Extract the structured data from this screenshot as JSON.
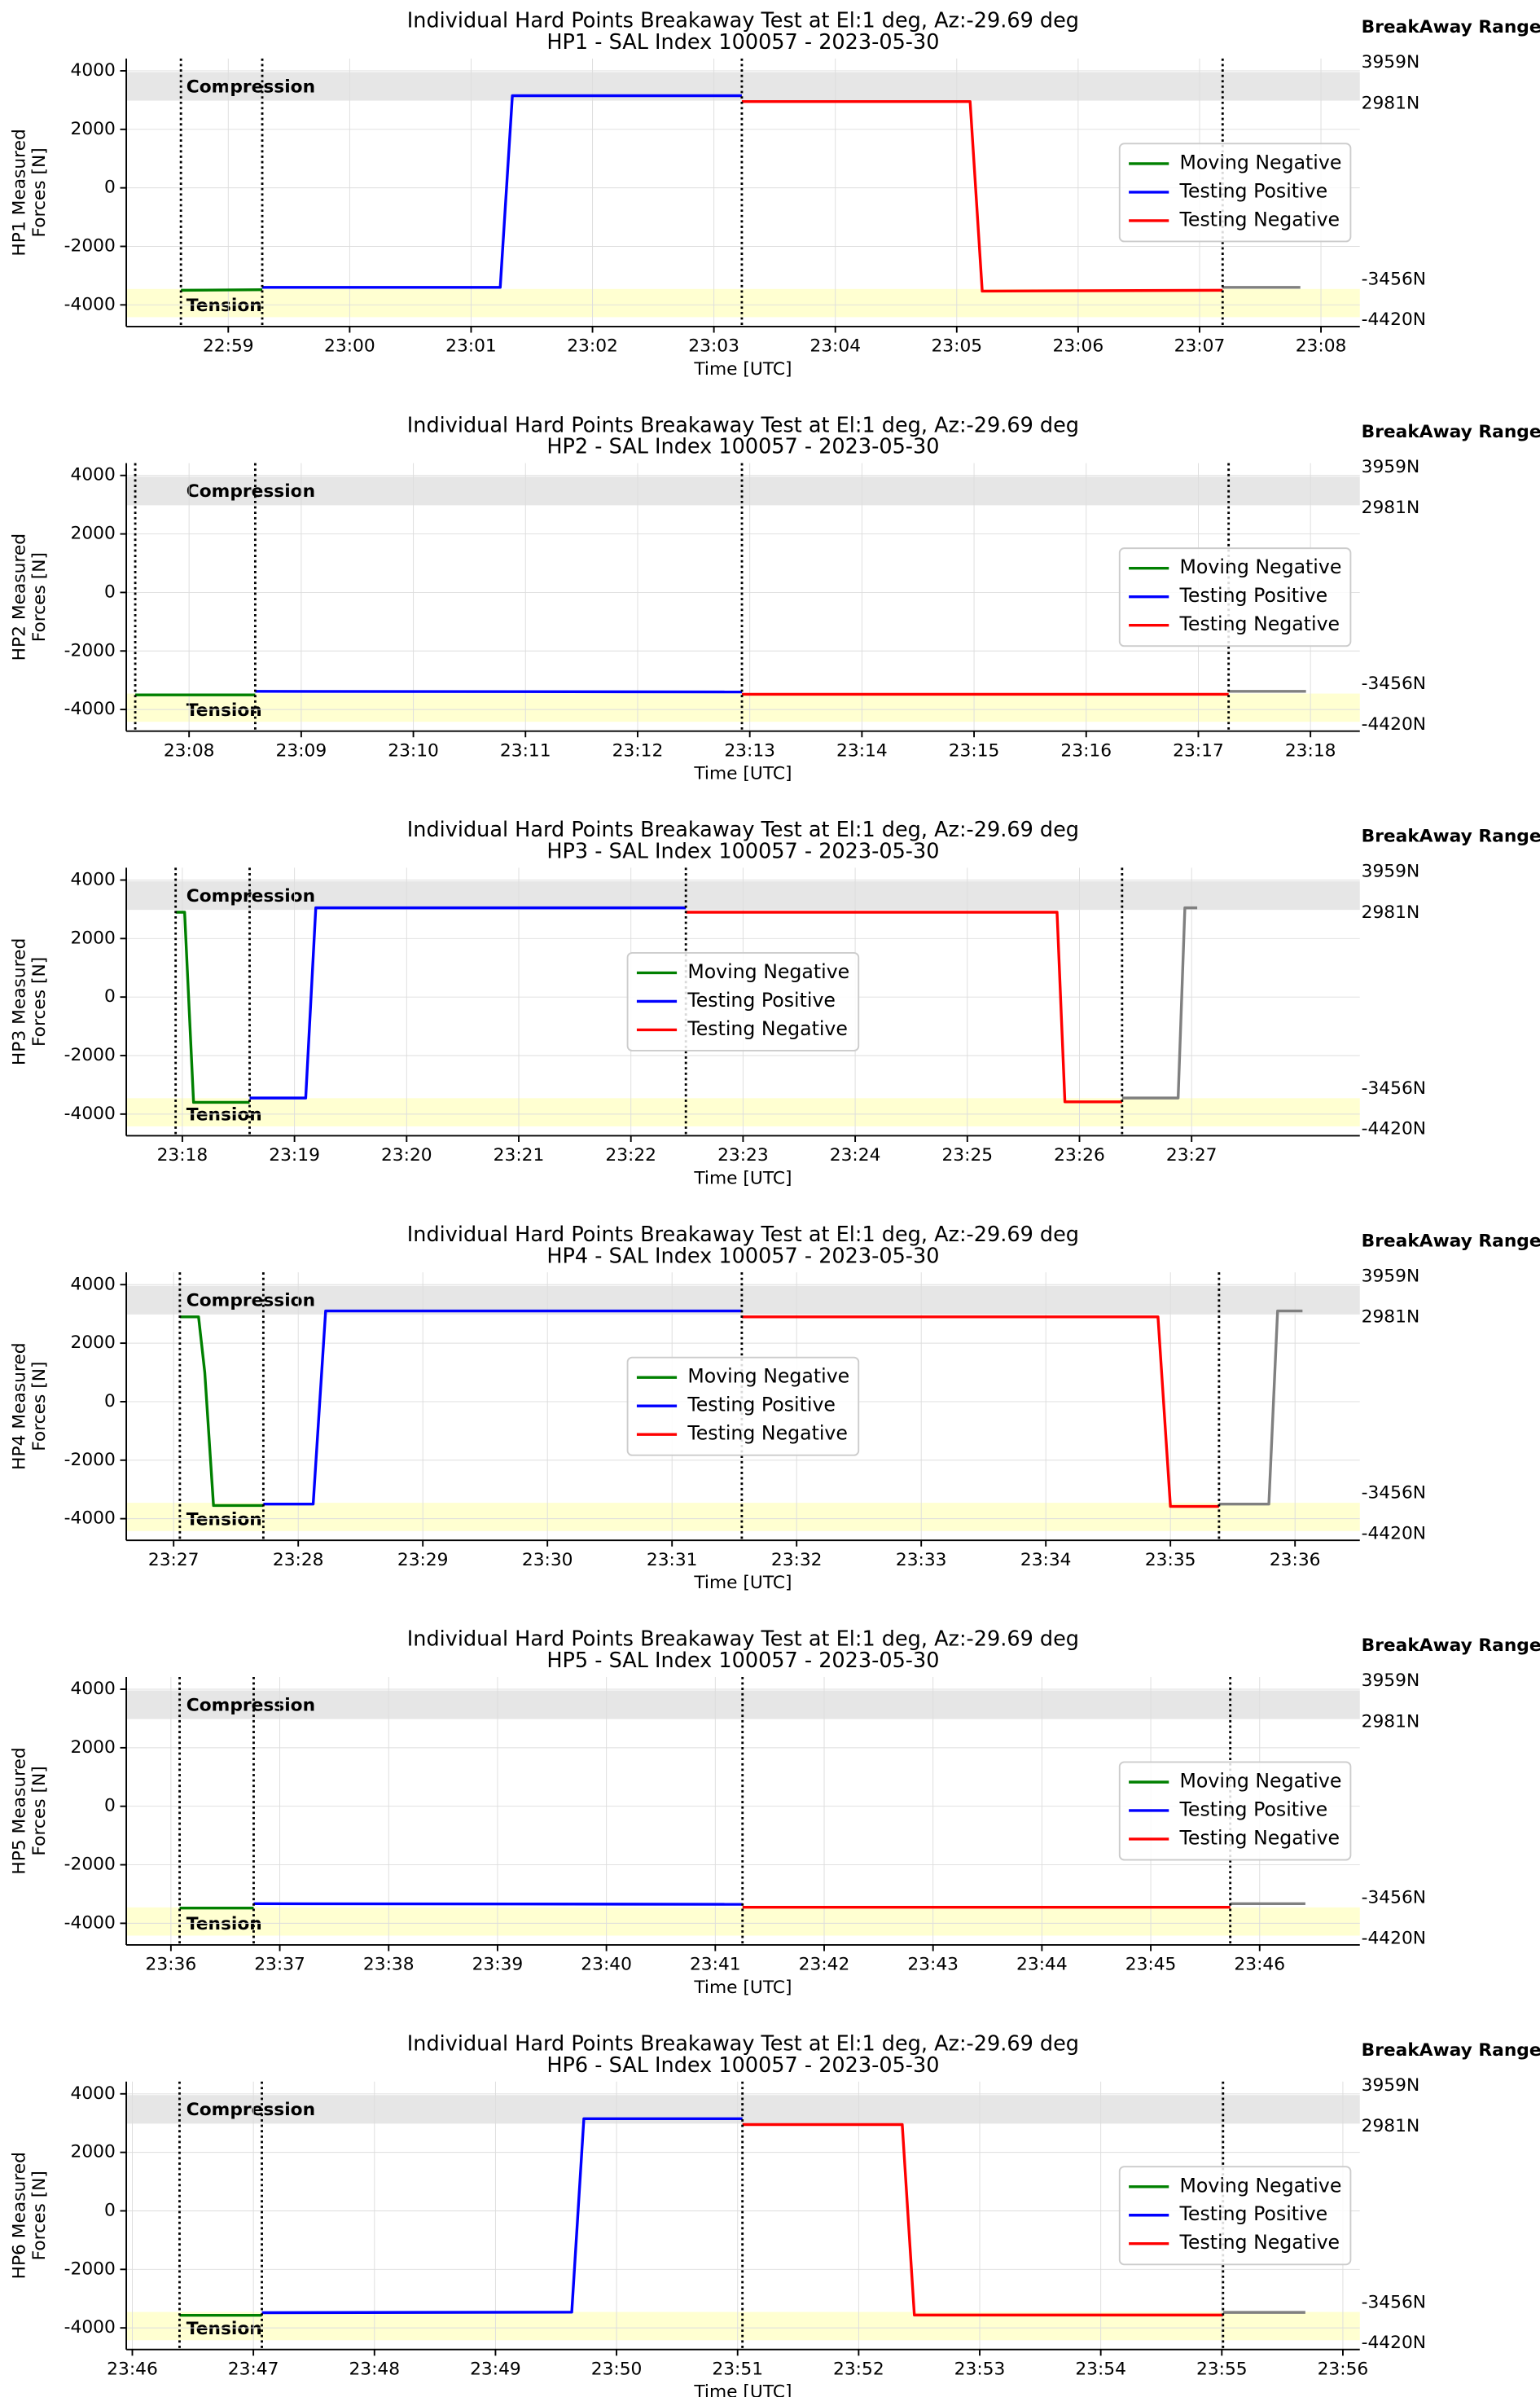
{
  "chart_data": [
    {
      "type": "line",
      "title": "Individual Hard Points Breakaway Test at El:1 deg, Az:-29.69 deg",
      "subtitle": "HP1 - SAL Index 100057 - 2023-05-30",
      "ylabel": [
        "HP1 Measured",
        "Forces [N]"
      ],
      "xlabel": "Time [UTC]",
      "range_title": "BreakAway Range:",
      "xlim": [
        1378.16,
        1388.32
      ],
      "ylim": [
        -4740,
        4420
      ],
      "xticks": [
        {
          "value": 1379,
          "label": "22:59"
        },
        {
          "value": 1380,
          "label": "23:00"
        },
        {
          "value": 1381,
          "label": "23:01"
        },
        {
          "value": 1382,
          "label": "23:02"
        },
        {
          "value": 1383,
          "label": "23:03"
        },
        {
          "value": 1384,
          "label": "23:04"
        },
        {
          "value": 1385,
          "label": "23:05"
        },
        {
          "value": 1386,
          "label": "23:06"
        },
        {
          "value": 1387,
          "label": "23:07"
        },
        {
          "value": 1388,
          "label": "23:08"
        }
      ],
      "yticks": [
        -4000,
        -2000,
        0,
        2000,
        4000
      ],
      "grid": true,
      "legend": "center right",
      "bands": [
        {
          "label": "Compression",
          "range": [
            2981,
            3959
          ],
          "range_labels": [
            "2981N",
            "3959N"
          ],
          "color": "#e3e3e3"
        },
        {
          "label": "Tension",
          "range": [
            -4420,
            -3456
          ],
          "range_labels": [
            "-4420N",
            "-3456N"
          ],
          "color": "#ffffcc"
        }
      ],
      "vlines": [
        1378.61,
        1379.28,
        1383.23,
        1387.19
      ],
      "series": [
        {
          "name": "Moving Negative",
          "color": "green",
          "x": [
            1378.61,
            1379.28
          ],
          "values": [
            -3500,
            -3480
          ]
        },
        {
          "name": "Testing Positive",
          "color": "blue",
          "x": [
            1379.28,
            1381.24,
            1381.34,
            1383.23
          ],
          "values": [
            -3400,
            -3400,
            3150,
            3150
          ]
        },
        {
          "name": "Testing Negative",
          "color": "red",
          "x": [
            1383.23,
            1385.11,
            1385.21,
            1387.19
          ],
          "values": [
            2950,
            2950,
            -3530,
            -3500
          ]
        },
        {
          "color": "gray",
          "x": [
            1387.19,
            1387.83
          ],
          "values": [
            -3400,
            -3400
          ]
        }
      ]
    },
    {
      "type": "line",
      "title": "Individual Hard Points Breakaway Test at El:1 deg, Az:-29.69 deg",
      "subtitle": "HP2 - SAL Index 100057 - 2023-05-30",
      "ylabel": [
        "HP2 Measured",
        "Forces [N]"
      ],
      "xlabel": "Time [UTC]",
      "range_title": "BreakAway Range:",
      "xlim": [
        1387.44,
        1398.44
      ],
      "ylim": [
        -4740,
        4420
      ],
      "xticks": [
        {
          "value": 1388,
          "label": "23:08"
        },
        {
          "value": 1389,
          "label": "23:09"
        },
        {
          "value": 1390,
          "label": "23:10"
        },
        {
          "value": 1391,
          "label": "23:11"
        },
        {
          "value": 1392,
          "label": "23:12"
        },
        {
          "value": 1393,
          "label": "23:13"
        },
        {
          "value": 1394,
          "label": "23:14"
        },
        {
          "value": 1395,
          "label": "23:15"
        },
        {
          "value": 1396,
          "label": "23:16"
        },
        {
          "value": 1397,
          "label": "23:17"
        },
        {
          "value": 1398,
          "label": "23:18"
        }
      ],
      "yticks": [
        -4000,
        -2000,
        0,
        2000,
        4000
      ],
      "grid": true,
      "legend": "center right",
      "bands": [
        {
          "label": "Compression",
          "range": [
            2981,
            3959
          ],
          "range_labels": [
            "2981N",
            "3959N"
          ],
          "color": "#e3e3e3"
        },
        {
          "label": "Tension",
          "range": [
            -4420,
            -3456
          ],
          "range_labels": [
            "-4420N",
            "-3456N"
          ],
          "color": "#ffffcc"
        }
      ],
      "vlines": [
        1387.52,
        1388.59,
        1392.93,
        1397.27
      ],
      "series": [
        {
          "name": "Moving Negative",
          "color": "green",
          "x": [
            1387.52,
            1388.59
          ],
          "values": [
            -3500,
            -3500
          ]
        },
        {
          "name": "Testing Positive",
          "color": "blue",
          "x": [
            1388.59,
            1392.93
          ],
          "values": [
            -3380,
            -3400
          ]
        },
        {
          "name": "Testing Negative",
          "color": "red",
          "x": [
            1392.93,
            1397.27
          ],
          "values": [
            -3480,
            -3480
          ]
        },
        {
          "color": "gray",
          "x": [
            1397.27,
            1397.96
          ],
          "values": [
            -3380,
            -3380
          ]
        }
      ]
    },
    {
      "type": "line",
      "title": "Individual Hard Points Breakaway Test at El:1 deg, Az:-29.69 deg",
      "subtitle": "HP3 - SAL Index 100057 - 2023-05-30",
      "ylabel": [
        "HP3 Measured",
        "Forces [N]"
      ],
      "xlabel": "Time [UTC]",
      "range_title": "BreakAway Range:",
      "xlim": [
        1397.5,
        1408.5
      ],
      "ylim": [
        -4740,
        4420
      ],
      "xticks": [
        {
          "value": 1398,
          "label": "23:18"
        },
        {
          "value": 1399,
          "label": "23:19"
        },
        {
          "value": 1400,
          "label": "23:20"
        },
        {
          "value": 1401,
          "label": "23:21"
        },
        {
          "value": 1402,
          "label": "23:22"
        },
        {
          "value": 1403,
          "label": "23:23"
        },
        {
          "value": 1404,
          "label": "23:24"
        },
        {
          "value": 1405,
          "label": "23:25"
        },
        {
          "value": 1406,
          "label": "23:26"
        },
        {
          "value": 1407,
          "label": "23:27"
        }
      ],
      "yticks": [
        -4000,
        -2000,
        0,
        2000,
        4000
      ],
      "grid": true,
      "legend": "center",
      "bands": [
        {
          "label": "Compression",
          "range": [
            2981,
            3959
          ],
          "range_labels": [
            "2981N",
            "3959N"
          ],
          "color": "#e3e3e3"
        },
        {
          "label": "Tension",
          "range": [
            -4420,
            -3456
          ],
          "range_labels": [
            "-4420N",
            "-3456N"
          ],
          "color": "#ffffcc"
        }
      ],
      "vlines": [
        1397.94,
        1398.6,
        1402.49,
        1406.38
      ],
      "series": [
        {
          "name": "Moving Negative",
          "color": "green",
          "x": [
            1397.94,
            1398.02,
            1398.1,
            1398.6
          ],
          "values": [
            2900,
            2900,
            -3600,
            -3600
          ]
        },
        {
          "name": "Testing Positive",
          "color": "blue",
          "x": [
            1398.6,
            1399.1,
            1399.19,
            1402.49
          ],
          "values": [
            -3450,
            -3450,
            3050,
            3050
          ]
        },
        {
          "name": "Testing Negative",
          "color": "red",
          "x": [
            1402.49,
            1405.8,
            1405.87,
            1406.38
          ],
          "values": [
            2900,
            2900,
            -3580,
            -3580
          ]
        },
        {
          "color": "gray",
          "x": [
            1406.38,
            1406.88,
            1406.94,
            1407.05
          ],
          "values": [
            -3450,
            -3450,
            3050,
            3050
          ]
        }
      ]
    },
    {
      "type": "line",
      "title": "Individual Hard Points Breakaway Test at El:1 deg, Az:-29.69 deg",
      "subtitle": "HP4 - SAL Index 100057 - 2023-05-30",
      "ylabel": [
        "HP4 Measured",
        "Forces [N]"
      ],
      "xlabel": "Time [UTC]",
      "range_title": "BreakAway Range:",
      "xlim": [
        1406.62,
        1416.52
      ],
      "ylim": [
        -4740,
        4420
      ],
      "xticks": [
        {
          "value": 1407,
          "label": "23:27"
        },
        {
          "value": 1408,
          "label": "23:28"
        },
        {
          "value": 1409,
          "label": "23:29"
        },
        {
          "value": 1410,
          "label": "23:30"
        },
        {
          "value": 1411,
          "label": "23:31"
        },
        {
          "value": 1412,
          "label": "23:32"
        },
        {
          "value": 1413,
          "label": "23:33"
        },
        {
          "value": 1414,
          "label": "23:34"
        },
        {
          "value": 1415,
          "label": "23:35"
        },
        {
          "value": 1416,
          "label": "23:36"
        }
      ],
      "yticks": [
        -4000,
        -2000,
        0,
        2000,
        4000
      ],
      "grid": true,
      "legend": "center",
      "bands": [
        {
          "label": "Compression",
          "range": [
            2981,
            3959
          ],
          "range_labels": [
            "2981N",
            "3959N"
          ],
          "color": "#e3e3e3"
        },
        {
          "label": "Tension",
          "range": [
            -4420,
            -3456
          ],
          "range_labels": [
            "-4420N",
            "-3456N"
          ],
          "color": "#ffffcc"
        }
      ],
      "vlines": [
        1407.05,
        1407.72,
        1411.56,
        1415.39
      ],
      "series": [
        {
          "name": "Moving Negative",
          "color": "green",
          "x": [
            1407.05,
            1407.2,
            1407.25,
            1407.32,
            1407.72
          ],
          "values": [
            2900,
            2900,
            1000,
            -3550,
            -3550
          ]
        },
        {
          "name": "Testing Positive",
          "color": "blue",
          "x": [
            1407.72,
            1408.12,
            1408.22,
            1411.56
          ],
          "values": [
            -3500,
            -3500,
            3100,
            3100
          ]
        },
        {
          "name": "Testing Negative",
          "color": "red",
          "x": [
            1411.56,
            1414.9,
            1415.0,
            1415.39
          ],
          "values": [
            2900,
            2900,
            -3580,
            -3580
          ]
        },
        {
          "color": "gray",
          "x": [
            1415.39,
            1415.79,
            1415.86,
            1416.06
          ],
          "values": [
            -3500,
            -3500,
            3100,
            3100
          ]
        }
      ]
    },
    {
      "type": "line",
      "title": "Individual Hard Points Breakaway Test at El:1 deg, Az:-29.69 deg",
      "subtitle": "HP5 - SAL Index 100057 - 2023-05-30",
      "ylabel": [
        "HP5 Measured",
        "Forces [N]"
      ],
      "xlabel": "Time [UTC]",
      "range_title": "BreakAway Range:",
      "xlim": [
        1415.59,
        1426.92
      ],
      "ylim": [
        -4740,
        4420
      ],
      "xticks": [
        {
          "value": 1416,
          "label": "23:36"
        },
        {
          "value": 1417,
          "label": "23:37"
        },
        {
          "value": 1418,
          "label": "23:38"
        },
        {
          "value": 1419,
          "label": "23:39"
        },
        {
          "value": 1420,
          "label": "23:40"
        },
        {
          "value": 1421,
          "label": "23:41"
        },
        {
          "value": 1422,
          "label": "23:42"
        },
        {
          "value": 1423,
          "label": "23:43"
        },
        {
          "value": 1424,
          "label": "23:44"
        },
        {
          "value": 1425,
          "label": "23:45"
        },
        {
          "value": 1426,
          "label": "23:46"
        }
      ],
      "yticks": [
        -4000,
        -2000,
        0,
        2000,
        4000
      ],
      "grid": true,
      "legend": "center right",
      "bands": [
        {
          "label": "Compression",
          "range": [
            2981,
            3959
          ],
          "range_labels": [
            "2981N",
            "3959N"
          ],
          "color": "#e3e3e3"
        },
        {
          "label": "Tension",
          "range": [
            -4420,
            -3456
          ],
          "range_labels": [
            "-4420N",
            "-3456N"
          ],
          "color": "#ffffcc"
        }
      ],
      "vlines": [
        1416.08,
        1416.76,
        1421.25,
        1425.73
      ],
      "series": [
        {
          "name": "Moving Negative",
          "color": "green",
          "x": [
            1416.08,
            1416.76
          ],
          "values": [
            -3480,
            -3480
          ]
        },
        {
          "name": "Testing Positive",
          "color": "blue",
          "x": [
            1416.76,
            1421.25
          ],
          "values": [
            -3330,
            -3350
          ]
        },
        {
          "name": "Testing Negative",
          "color": "red",
          "x": [
            1421.25,
            1425.73
          ],
          "values": [
            -3450,
            -3450
          ]
        },
        {
          "color": "gray",
          "x": [
            1425.73,
            1426.42
          ],
          "values": [
            -3330,
            -3330
          ]
        }
      ]
    },
    {
      "type": "line",
      "title": "Individual Hard Points Breakaway Test at El:1 deg, Az:-29.69 deg",
      "subtitle": "HP6 - SAL Index 100057 - 2023-05-30",
      "ylabel": [
        "HP6 Measured",
        "Forces [N]"
      ],
      "xlabel": "Time [UTC]",
      "range_title": "BreakAway Range:",
      "xlim": [
        1425.95,
        1436.14
      ],
      "ylim": [
        -4740,
        4420
      ],
      "xticks": [
        {
          "value": 1426,
          "label": "23:46"
        },
        {
          "value": 1427,
          "label": "23:47"
        },
        {
          "value": 1428,
          "label": "23:48"
        },
        {
          "value": 1429,
          "label": "23:49"
        },
        {
          "value": 1430,
          "label": "23:50"
        },
        {
          "value": 1431,
          "label": "23:51"
        },
        {
          "value": 1432,
          "label": "23:52"
        },
        {
          "value": 1433,
          "label": "23:53"
        },
        {
          "value": 1434,
          "label": "23:54"
        },
        {
          "value": 1435,
          "label": "23:55"
        },
        {
          "value": 1436,
          "label": "23:56"
        }
      ],
      "yticks": [
        -4000,
        -2000,
        0,
        2000,
        4000
      ],
      "grid": true,
      "legend": "center right",
      "bands": [
        {
          "label": "Compression",
          "range": [
            2981,
            3959
          ],
          "range_labels": [
            "2981N",
            "3959N"
          ],
          "color": "#e3e3e3"
        },
        {
          "label": "Tension",
          "range": [
            -4420,
            -3456
          ],
          "range_labels": [
            "-4420N",
            "-3456N"
          ],
          "color": "#ffffcc"
        }
      ],
      "vlines": [
        1426.39,
        1427.07,
        1431.04,
        1435.01
      ],
      "series": [
        {
          "name": "Moving Negative",
          "color": "green",
          "x": [
            1426.39,
            1427.07
          ],
          "values": [
            -3570,
            -3570
          ]
        },
        {
          "name": "Testing Positive",
          "color": "blue",
          "x": [
            1427.07,
            1429.63,
            1429.73,
            1431.04
          ],
          "values": [
            -3480,
            -3460,
            3150,
            3150
          ]
        },
        {
          "name": "Testing Negative",
          "color": "red",
          "x": [
            1431.04,
            1432.36,
            1432.46,
            1435.01
          ],
          "values": [
            2950,
            2950,
            -3560,
            -3560
          ]
        },
        {
          "color": "gray",
          "x": [
            1435.01,
            1435.69
          ],
          "values": [
            -3470,
            -3470
          ]
        }
      ]
    }
  ]
}
